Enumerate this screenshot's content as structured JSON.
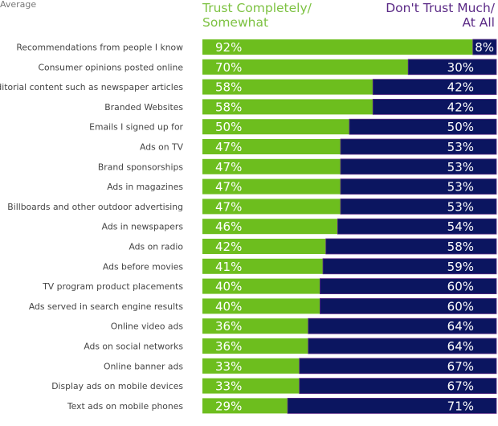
{
  "header": {
    "corner_text": "Average",
    "trust_label_line1": "Trust Completely/",
    "trust_label_line2": "Somewhat",
    "distrust_label_line1": "Don't Trust Much/",
    "distrust_label_line2": "At All"
  },
  "colors": {
    "trust": "#6dbe1e",
    "distrust": "#0b1560",
    "trust_header": "#7dc242",
    "distrust_header": "#5b2a86"
  },
  "chart_data": {
    "type": "bar",
    "orientation": "horizontal",
    "stacked": true,
    "xlim": [
      0,
      100
    ],
    "grid": false,
    "legend": "top",
    "categories": [
      "Recommendations from people I know",
      "Consumer opinions posted online",
      "Editorial content such as newspaper articles",
      "Branded Websites",
      "Emails I signed up for",
      "Ads on TV",
      "Brand sponsorships",
      "Ads in magazines",
      "Billboards and other outdoor advertising",
      "Ads in newspapers",
      "Ads on radio",
      "Ads before movies",
      "TV program product placements",
      "Ads served in search engine results",
      "Online video ads",
      "Ads on social networks",
      "Online banner ads",
      "Display ads on mobile devices",
      "Text ads on mobile phones"
    ],
    "series": [
      {
        "name": "Trust Completely/ Somewhat",
        "values": [
          92,
          70,
          58,
          58,
          50,
          47,
          47,
          47,
          47,
          46,
          42,
          41,
          40,
          40,
          36,
          36,
          33,
          33,
          29
        ]
      },
      {
        "name": "Don't Trust Much/ At All",
        "values": [
          8,
          30,
          42,
          42,
          50,
          53,
          53,
          53,
          53,
          54,
          58,
          59,
          60,
          60,
          64,
          64,
          67,
          67,
          71
        ]
      }
    ]
  }
}
